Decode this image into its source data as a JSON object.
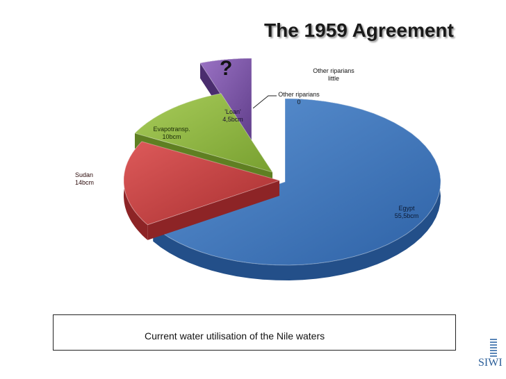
{
  "slide": {
    "title": "The 1959 Agreement",
    "question_mark": "?",
    "caption": "Current water utilisation of the Nile waters",
    "logo_text": "SIWI"
  },
  "chart_data": {
    "type": "pie",
    "title": "The 1959 Agreement",
    "slices": [
      {
        "label": "Egypt",
        "value_label": "55,5bcm",
        "value": 55.5,
        "color": "#3e74b8",
        "exploded": false
      },
      {
        "label": "Sudan",
        "value_label": "14bcm",
        "value": 14,
        "color": "#c0393b",
        "exploded": true
      },
      {
        "label": "Evapotransp.",
        "value_label": "10bcm",
        "value": 10,
        "color": "#8fb73e",
        "exploded": true
      },
      {
        "label": "'Loan'",
        "value_label": "4,5bcm",
        "value": 4.5,
        "color": "#7b52a6",
        "exploded": true
      },
      {
        "label": "Other riparians",
        "value_label": "0",
        "value": 0,
        "color": "#888888",
        "exploded": true
      },
      {
        "label": "Other riparians",
        "value_label": "little",
        "value": 0,
        "color": "#888888",
        "exploded": true
      }
    ]
  }
}
